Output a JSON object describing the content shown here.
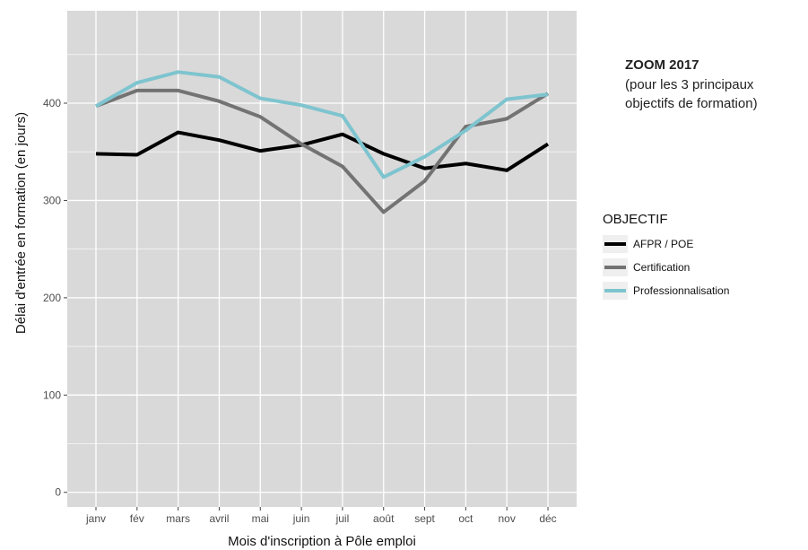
{
  "annotation": {
    "title": "ZOOM 2017",
    "line1": "(pour les 3 principaux",
    "line2": "objectifs de  formation)"
  },
  "chart_data": {
    "type": "line",
    "categories": [
      "janv",
      "fév",
      "mars",
      "avril",
      "mai",
      "juin",
      "juil",
      "août",
      "sept",
      "oct",
      "nov",
      "déc"
    ],
    "series": [
      {
        "name": "AFPR / POE",
        "color": "#000000",
        "values": [
          348,
          347,
          370,
          362,
          351,
          357,
          368,
          348,
          333,
          338,
          331,
          358
        ]
      },
      {
        "name": "Certification",
        "color": "#737373",
        "values": [
          397,
          413,
          413,
          402,
          386,
          358,
          335,
          288,
          320,
          376,
          384,
          410
        ]
      },
      {
        "name": "Professionnalisation",
        "color": "#7ec4cf",
        "values": [
          397,
          421,
          432,
          427,
          405,
          398,
          387,
          324,
          345,
          372,
          404,
          409
        ]
      }
    ],
    "xlabel": "Mois d'inscription à Pôle emploi",
    "ylabel": "Délai d'entrée en formation (en jours)",
    "ylim": [
      -15,
      495
    ],
    "yticks": [
      0,
      100,
      200,
      300,
      400
    ],
    "grid": true,
    "legend_title": "OBJECTIF",
    "legend_position": "right",
    "panel_color": "#d9d9d9",
    "grid_color": "#ffffff"
  }
}
